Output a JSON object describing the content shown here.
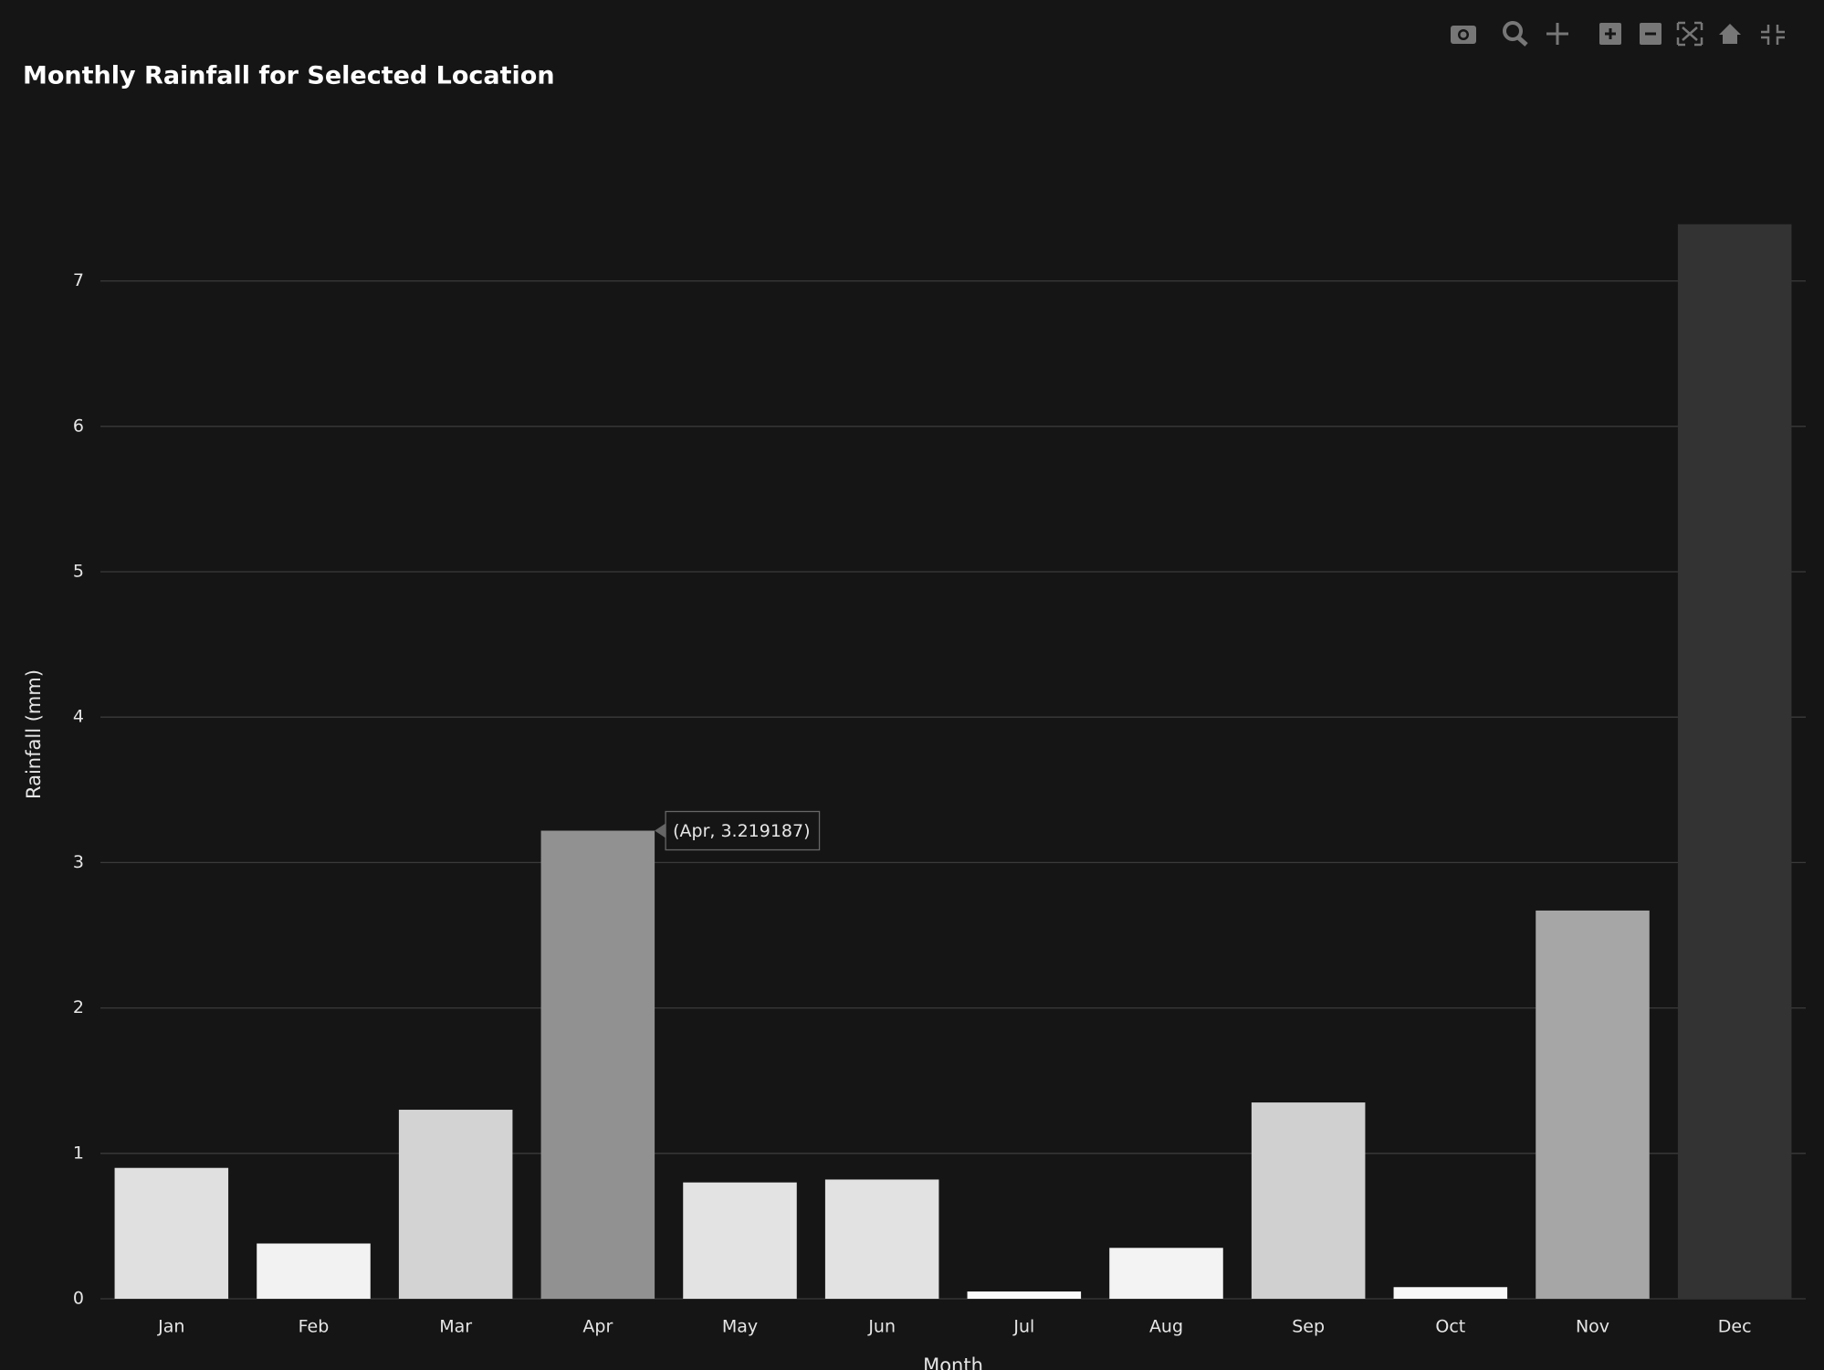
{
  "chart_data": {
    "type": "bar",
    "title": "Monthly Rainfall for Selected Location",
    "x_label": "Month",
    "y_label": "Rainfall (mm)",
    "categories": [
      "Jan",
      "Feb",
      "Mar",
      "Apr",
      "May",
      "Jun",
      "Jul",
      "Aug",
      "Sep",
      "Oct",
      "Nov",
      "Dec"
    ],
    "values": [
      0.9,
      0.38,
      1.3,
      3.219187,
      0.8,
      0.82,
      0.05,
      0.35,
      1.35,
      0.08,
      2.67,
      7.39
    ],
    "colors": [
      "#e0e0e0",
      "#f2f2f2",
      "#d3d3d3",
      "#919191",
      "#e3e3e3",
      "#e2e2e2",
      "#fafafa",
      "#f3f3f3",
      "#d0d0d0",
      "#f8f8f8",
      "#a6a6a6",
      "#333333"
    ],
    "ylim": [
      0,
      7.5
    ],
    "yticks": [
      0,
      1,
      2,
      3,
      4,
      5,
      6,
      7
    ],
    "grid": true,
    "tooltip": "(Apr, 3.219187)"
  }
}
